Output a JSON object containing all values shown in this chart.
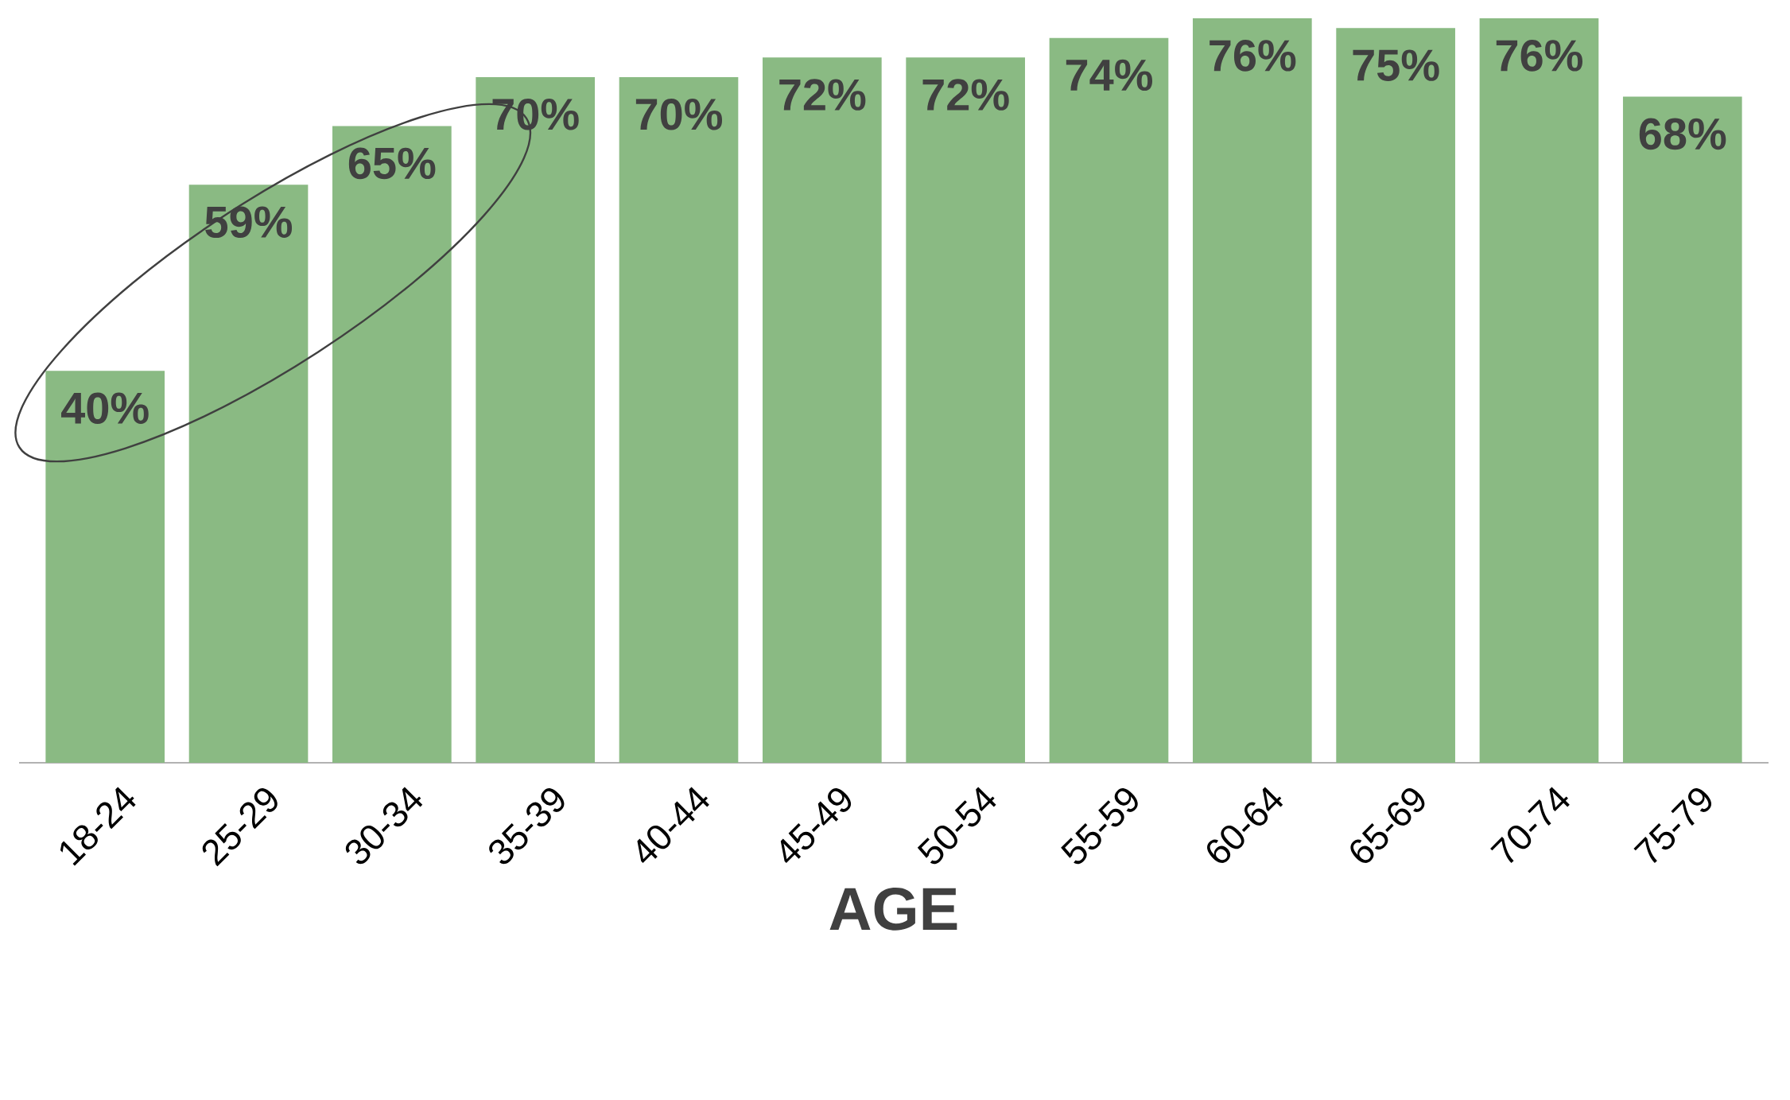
{
  "chart_data": {
    "type": "bar",
    "xlabel": "AGE",
    "categories": [
      "18-24",
      "25-29",
      "30-34",
      "35-39",
      "40-44",
      "45-49",
      "50-54",
      "55-59",
      "60-64",
      "65-69",
      "70-74",
      "75-79"
    ],
    "values": [
      40,
      59,
      65,
      70,
      70,
      72,
      72,
      74,
      76,
      75,
      76,
      68
    ],
    "value_labels": [
      "40%",
      "59%",
      "65%",
      "70%",
      "70%",
      "72%",
      "72%",
      "74%",
      "76%",
      "75%",
      "76%",
      "68%"
    ],
    "color": "#8aba83"
  }
}
